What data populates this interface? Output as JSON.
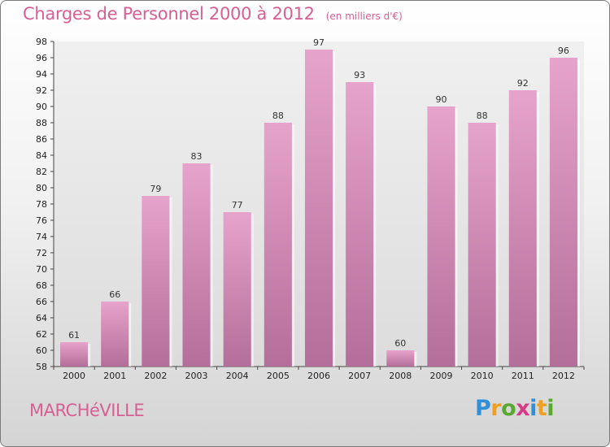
{
  "header": {
    "title": "Charges de Personnel 2000 à 2012",
    "unit": "(en milliers d'€)"
  },
  "footer": {
    "town": "MARCHéVILLE",
    "logo_letters": [
      "P",
      "r",
      "o",
      "x",
      "i",
      "t",
      "i"
    ],
    "logo_colors": [
      "#2f8fd8",
      "#f0a020",
      "#5aa832",
      "#d83a8a",
      "#2f8fd8",
      "#f0a020",
      "#5aa832"
    ]
  },
  "chart_data": {
    "type": "bar",
    "title": "Charges de Personnel 2000 à 2012",
    "subtitle": "(en milliers d'€)",
    "categories": [
      "2000",
      "2001",
      "2002",
      "2003",
      "2004",
      "2005",
      "2006",
      "2007",
      "2008",
      "2009",
      "2010",
      "2011",
      "2012"
    ],
    "values": [
      61,
      66,
      79,
      83,
      77,
      88,
      97,
      93,
      60,
      90,
      88,
      92,
      96
    ],
    "ylim": [
      58,
      98
    ],
    "yticks": [
      58,
      60,
      62,
      64,
      66,
      68,
      70,
      72,
      74,
      76,
      78,
      80,
      82,
      84,
      86,
      88,
      90,
      92,
      94,
      96,
      98
    ],
    "grid": false,
    "bar_color": "#d97fb3"
  }
}
